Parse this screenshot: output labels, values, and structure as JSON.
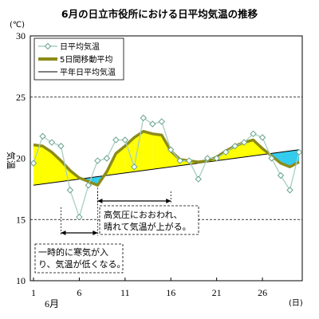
{
  "chart_data": {
    "type": "line",
    "title": "6月の日立市役所における日平均気温の推移",
    "ylabel": "気温",
    "yunit": "(℃)",
    "xunit": "(日)",
    "month_label": "6月",
    "xlim": [
      1,
      30
    ],
    "ylim": [
      10,
      30
    ],
    "yticks": [
      10,
      15,
      20,
      25,
      30
    ],
    "xticks": [
      1,
      6,
      11,
      16,
      21,
      26
    ],
    "grid_y": [
      15,
      25
    ],
    "legend_position": "top-left",
    "colors": {
      "daily_line": "#a8cfc0",
      "daily_marker_edge": "#66a38d",
      "daily_marker_fill": "#ffffff",
      "moving_avg": "#8c8c1a",
      "normal": "#000000",
      "warm_fill": "#ffff00",
      "cold_fill": "#33ccee",
      "grid": "#000000"
    },
    "series": [
      {
        "name": "日平均気温",
        "x": [
          1,
          2,
          3,
          4,
          5,
          6,
          7,
          8,
          9,
          10,
          11,
          12,
          13,
          14,
          15,
          16,
          17,
          18,
          19,
          20,
          21,
          22,
          23,
          24,
          25,
          26,
          27,
          28,
          29,
          30
        ],
        "values": [
          19.6,
          21.8,
          21.3,
          21.0,
          17.4,
          15.2,
          17.8,
          19.8,
          20.0,
          21.5,
          21.5,
          19.3,
          23.3,
          22.8,
          23.0,
          20.7,
          19.8,
          19.8,
          18.3,
          20.0,
          20.0,
          20.5,
          21.0,
          21.3,
          22.0,
          21.7,
          20.0,
          18.6,
          17.4,
          20.5
        ]
      },
      {
        "name": "5日間移動平均",
        "x": [
          1,
          2,
          3,
          4,
          5,
          6,
          7,
          8,
          9,
          10,
          11,
          12,
          13,
          14,
          15,
          16,
          17,
          18,
          19,
          20,
          21,
          22,
          23,
          24,
          25,
          26,
          27,
          28,
          29,
          30
        ],
        "values": [
          21.1,
          21.0,
          20.5,
          19.8,
          19.0,
          18.4,
          18.1,
          17.8,
          18.9,
          20.4,
          21.0,
          21.7,
          22.2,
          22.0,
          21.9,
          20.6,
          19.9,
          19.8,
          19.7,
          19.8,
          20.1,
          20.6,
          21.0,
          21.3,
          21.5,
          20.8,
          20.2,
          19.6,
          19.3,
          19.7
        ]
      },
      {
        "name": "平年日平均気温",
        "x": [
          1,
          30
        ],
        "values": [
          17.8,
          20.7
        ]
      }
    ],
    "annotations": [
      {
        "lines": [
          "高気圧におおわれ、",
          "晴れて気温が上がる。"
        ],
        "x_range": [
          8,
          16
        ]
      },
      {
        "lines": [
          "一時的に寒気が入",
          "り、気温が低くなる。"
        ],
        "x_range": [
          4,
          8
        ]
      }
    ]
  }
}
